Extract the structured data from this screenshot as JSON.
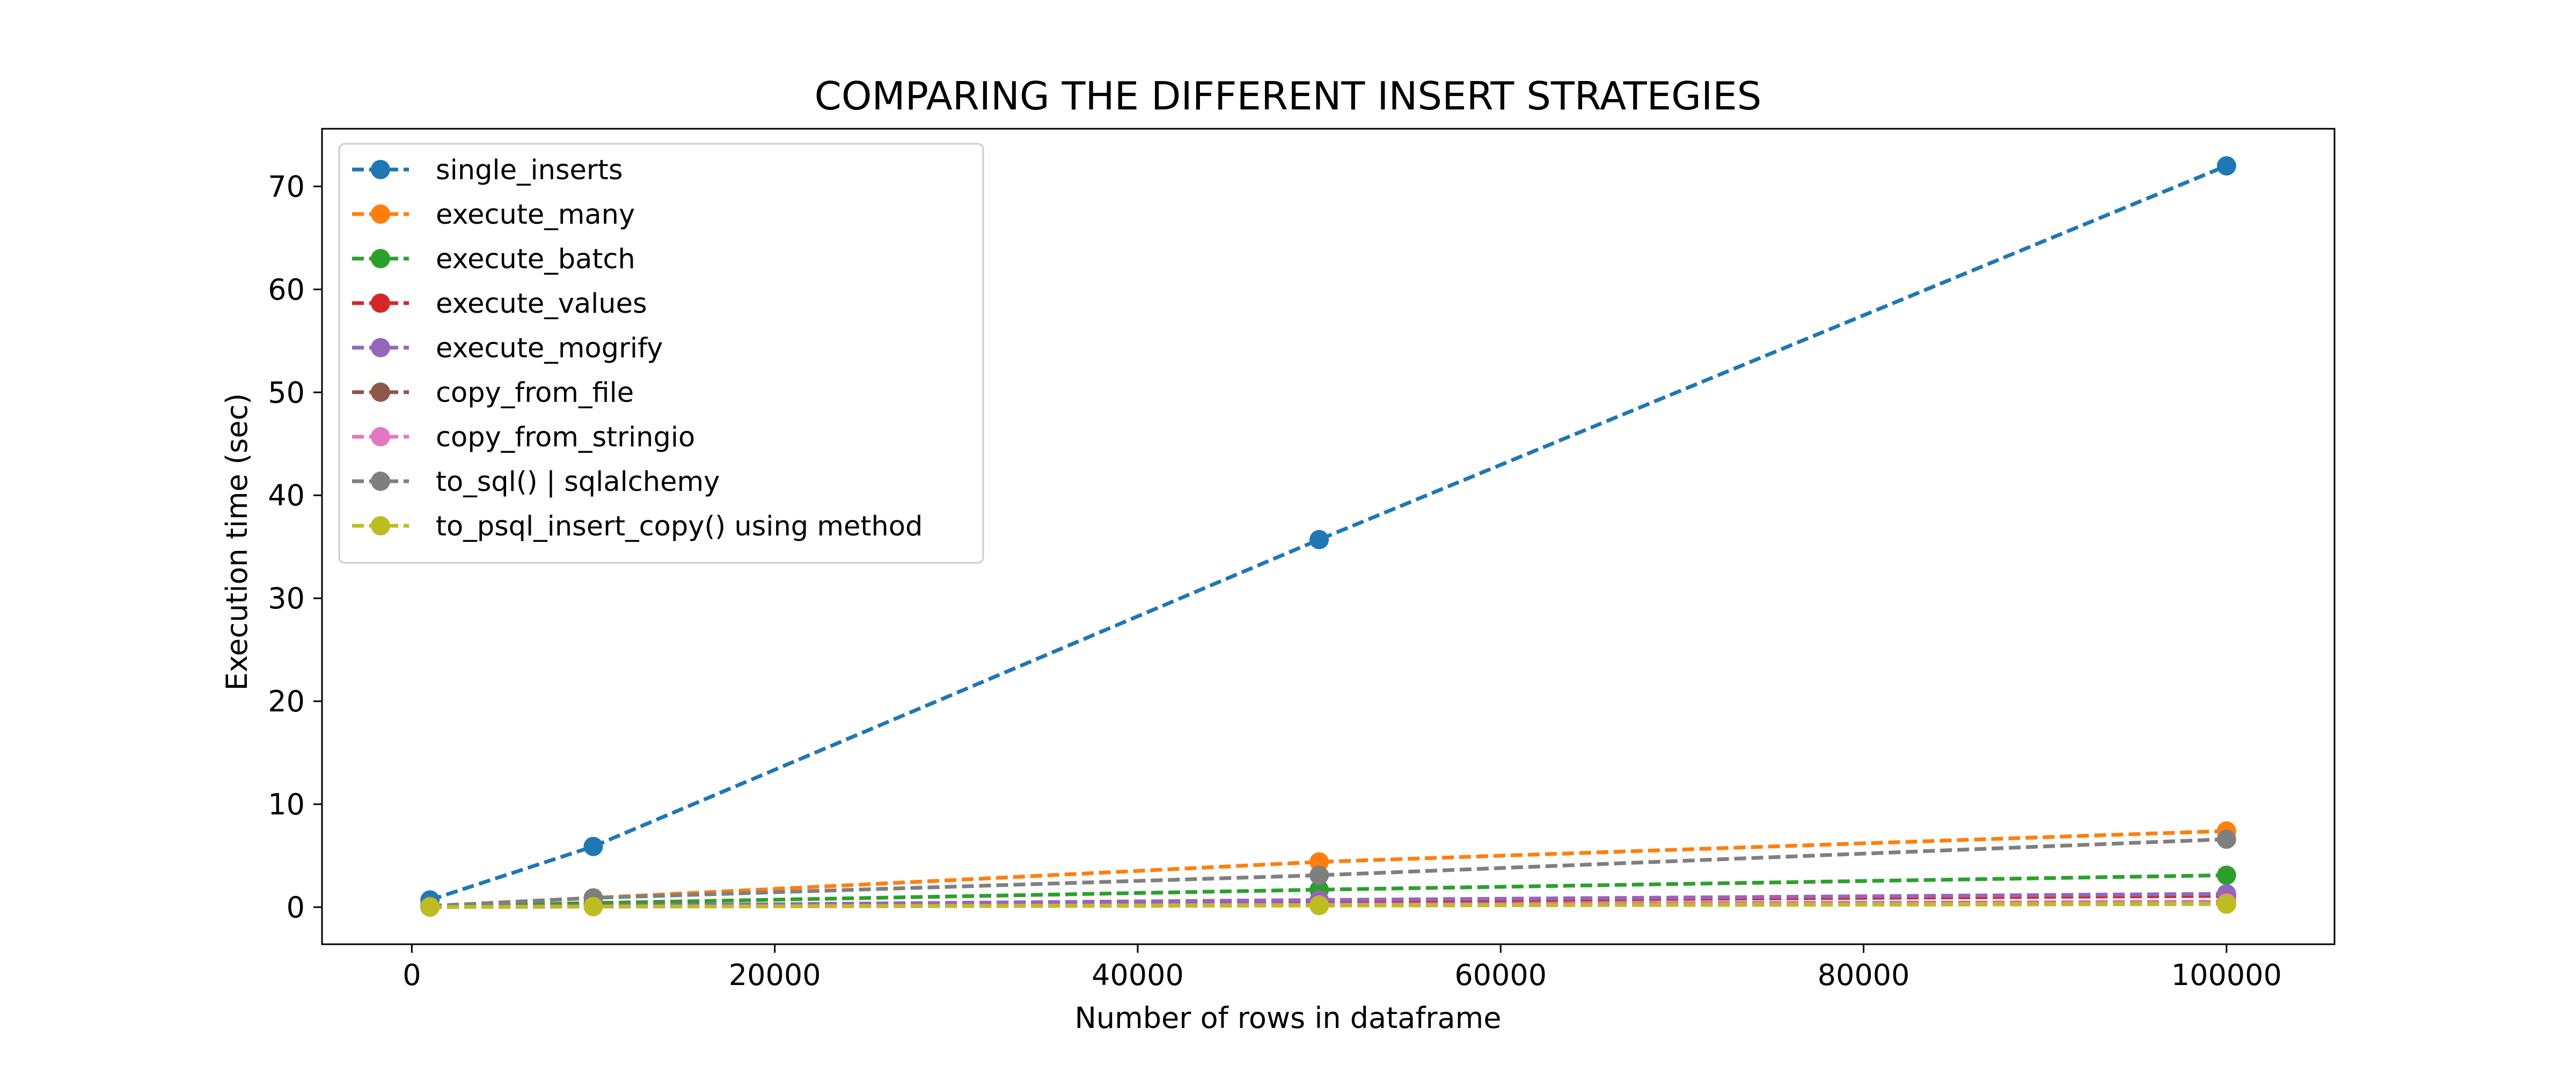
{
  "chart_data": {
    "type": "line",
    "title": "COMPARING THE DIFFERENT INSERT STRATEGIES",
    "xlabel": "Number of rows in dataframe",
    "ylabel": "Execution time (sec)",
    "xlim": [
      -4950,
      105950
    ],
    "ylim": [
      -3.6,
      75.6
    ],
    "xticks": [
      0,
      20000,
      40000,
      60000,
      80000,
      100000
    ],
    "xtick_labels": [
      "0",
      "20000",
      "40000",
      "60000",
      "80000",
      "100000"
    ],
    "yticks": [
      0,
      10,
      20,
      30,
      40,
      50,
      60,
      70
    ],
    "ytick_labels": [
      "0",
      "10",
      "20",
      "30",
      "40",
      "50",
      "60",
      "70"
    ],
    "grid": false,
    "legend_position": "top-left",
    "line_style": "dashed",
    "marker": "circle",
    "x": [
      1000,
      10000,
      50000,
      100000
    ],
    "series": [
      {
        "name": "single_inserts",
        "color": "#1f77b4",
        "values": [
          0.7,
          5.9,
          35.7,
          72.0
        ]
      },
      {
        "name": "execute_many",
        "color": "#ff7f0e",
        "values": [
          0.1,
          0.9,
          4.4,
          7.4
        ]
      },
      {
        "name": "execute_batch",
        "color": "#2ca02c",
        "values": [
          0.05,
          0.4,
          1.7,
          3.1
        ]
      },
      {
        "name": "execute_values",
        "color": "#d62728",
        "values": [
          0.02,
          0.15,
          0.6,
          1.1
        ]
      },
      {
        "name": "execute_mogrify",
        "color": "#9467bd",
        "values": [
          0.03,
          0.15,
          0.7,
          1.3
        ]
      },
      {
        "name": "copy_from_file",
        "color": "#8c564b",
        "values": [
          0.01,
          0.06,
          0.3,
          0.5
        ]
      },
      {
        "name": "copy_from_stringio",
        "color": "#e377c2",
        "values": [
          0.01,
          0.05,
          0.25,
          0.45
        ]
      },
      {
        "name": "to_sql() | sqlalchemy",
        "color": "#7f7f7f",
        "values": [
          0.12,
          0.9,
          3.1,
          6.6
        ]
      },
      {
        "name": "to_psql_insert_copy() using method",
        "color": "#bcbd22",
        "values": [
          0.01,
          0.05,
          0.15,
          0.3
        ]
      }
    ]
  }
}
